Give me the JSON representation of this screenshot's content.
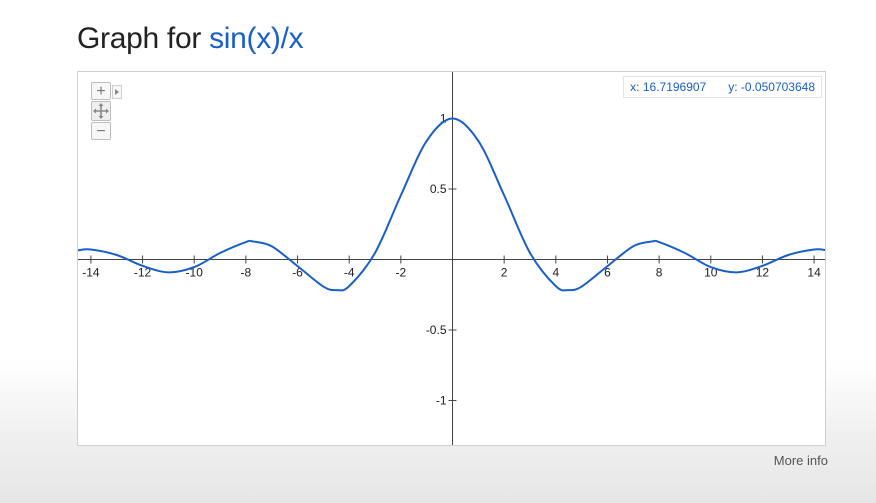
{
  "title": {
    "prefix": "Graph for",
    "function": "sin(x)/x"
  },
  "readout": {
    "x_text": "x: 16.7196907",
    "y_text": "y: -0.050703648"
  },
  "footer": {
    "more_info": "More info"
  },
  "zoom_controls": {
    "zoom_in": "+",
    "zoom_out": "−",
    "pan_icon": "move-icon"
  },
  "colors": {
    "curve": "#1a5fc9",
    "axis": "#444444",
    "title_fn": "#1a5fc9"
  },
  "chart_data": {
    "type": "line",
    "function": "sin(x)/x",
    "xlim": [
      -14.5,
      14.5
    ],
    "ylim": [
      -1.33,
      1.33
    ],
    "x_ticks": [
      -14,
      -12,
      -10,
      -8,
      -6,
      -4,
      -2,
      2,
      4,
      6,
      8,
      10,
      12,
      14
    ],
    "y_ticks": [
      1,
      0.5,
      -0.5,
      -1
    ],
    "grid": false,
    "series": [
      {
        "x": [
          -14.5,
          -14,
          -13,
          -12,
          -11,
          -10,
          -9,
          -8,
          -7.725,
          -7,
          -6,
          -5,
          -4.493,
          -4,
          -3,
          -2,
          -1,
          0,
          1,
          2,
          3,
          4,
          4.493,
          5,
          6,
          7,
          7.725,
          8,
          9,
          10,
          11,
          12,
          13,
          14,
          14.5
        ],
        "y": [
          0.065,
          0.071,
          0.032,
          -0.045,
          -0.091,
          -0.054,
          0.046,
          0.124,
          0.128,
          0.094,
          -0.047,
          -0.192,
          -0.217,
          -0.189,
          0.047,
          0.455,
          0.841,
          1,
          0.841,
          0.455,
          0.047,
          -0.189,
          -0.217,
          -0.192,
          -0.047,
          0.094,
          0.128,
          0.124,
          0.046,
          -0.054,
          -0.091,
          -0.045,
          0.032,
          0.071,
          0.065
        ]
      }
    ]
  }
}
